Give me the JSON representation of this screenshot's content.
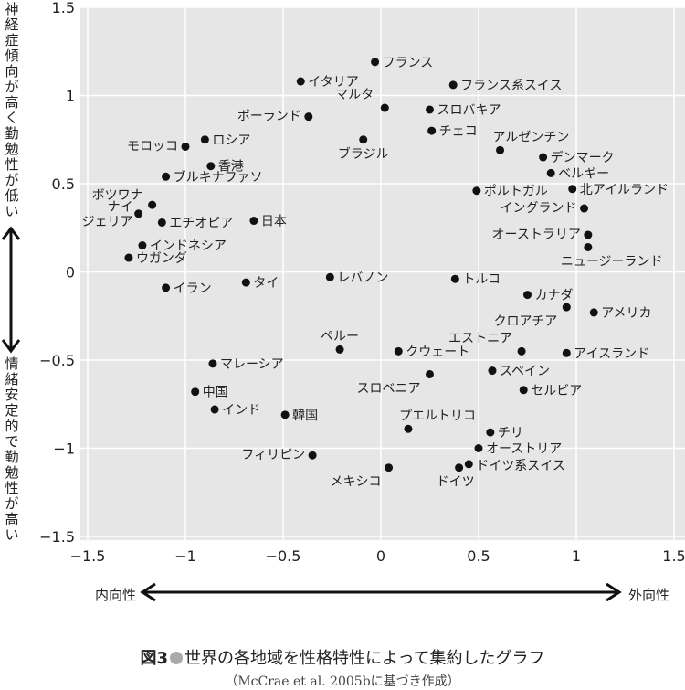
{
  "chart_data": {
    "type": "scatter",
    "title": "世界の各地域を性格特性によって集約したグラフ",
    "figure_label": "図3",
    "source": "（McCrae et al. 2005bに基づき作成）",
    "xlabel_left": "内向性",
    "xlabel_right": "外向性",
    "ylabel_top": "神経症傾向が高く勤勉性が低い",
    "ylabel_bottom": "情緒安定的で勤勉性が高い",
    "xlim": [
      -1.5,
      1.5
    ],
    "ylim": [
      -1.5,
      1.5
    ],
    "xticks": [
      "−1.5",
      "−1",
      "−0.5",
      "0",
      "0.5",
      "1",
      "1.5"
    ],
    "yticks": [
      "1.5",
      "1",
      "0.5",
      "0",
      "−0.5",
      "−1",
      "−1.5"
    ],
    "grid": true,
    "points": [
      {
        "label": "フランス",
        "x": -0.03,
        "y": 1.19
      },
      {
        "label": "イタリア",
        "x": -0.41,
        "y": 1.08
      },
      {
        "label": "フランス系スイス",
        "x": 0.37,
        "y": 1.06
      },
      {
        "label": "マルタ",
        "x": 0.02,
        "y": 0.93
      },
      {
        "label": "スロバキア",
        "x": 0.25,
        "y": 0.92
      },
      {
        "label": "ポーランド",
        "x": -0.37,
        "y": 0.88
      },
      {
        "label": "チェコ",
        "x": 0.26,
        "y": 0.8
      },
      {
        "label": "ブラジル",
        "x": -0.09,
        "y": 0.75
      },
      {
        "label": "ロシア",
        "x": -0.9,
        "y": 0.75
      },
      {
        "label": "モロッコ",
        "x": -1.0,
        "y": 0.71
      },
      {
        "label": "アルゼンチン",
        "x": 0.61,
        "y": 0.69
      },
      {
        "label": "デンマーク",
        "x": 0.83,
        "y": 0.65
      },
      {
        "label": "香港",
        "x": -0.87,
        "y": 0.6
      },
      {
        "label": "ベルギー",
        "x": 0.87,
        "y": 0.56
      },
      {
        "label": "ブルキナファソ",
        "x": -1.1,
        "y": 0.54
      },
      {
        "label": "ポルトガル",
        "x": 0.49,
        "y": 0.46
      },
      {
        "label": "北アイルランド",
        "x": 0.98,
        "y": 0.47
      },
      {
        "label": "ボツワナ",
        "x": -1.17,
        "y": 0.38
      },
      {
        "label": "イングランド",
        "x": 1.04,
        "y": 0.36
      },
      {
        "label": "ナイジェリア",
        "x": -1.24,
        "y": 0.33
      },
      {
        "label": "エチオピア",
        "x": -1.12,
        "y": 0.28
      },
      {
        "label": "日本",
        "x": -0.65,
        "y": 0.29
      },
      {
        "label": "オーストラリア",
        "x": 1.06,
        "y": 0.21
      },
      {
        "label": "インドネシア",
        "x": -1.22,
        "y": 0.15
      },
      {
        "label": "ニュージーランド",
        "x": 1.06,
        "y": 0.14
      },
      {
        "label": "ウガンダ",
        "x": -1.29,
        "y": 0.08
      },
      {
        "label": "レバノン",
        "x": -0.26,
        "y": -0.03
      },
      {
        "label": "トルコ",
        "x": 0.38,
        "y": -0.04
      },
      {
        "label": "タイ",
        "x": -0.69,
        "y": -0.06
      },
      {
        "label": "イラン",
        "x": -1.1,
        "y": -0.09
      },
      {
        "label": "カナダ",
        "x": 0.75,
        "y": -0.13
      },
      {
        "label": "クロアチア",
        "x": 0.95,
        "y": -0.2
      },
      {
        "label": "アメリカ",
        "x": 1.09,
        "y": -0.23
      },
      {
        "label": "ペルー",
        "x": -0.21,
        "y": -0.44
      },
      {
        "label": "クウェート",
        "x": 0.09,
        "y": -0.45
      },
      {
        "label": "エストニア",
        "x": 0.72,
        "y": -0.45
      },
      {
        "label": "アイスランド",
        "x": 0.95,
        "y": -0.46
      },
      {
        "label": "マレーシア",
        "x": -0.86,
        "y": -0.52
      },
      {
        "label": "スロベニア",
        "x": 0.25,
        "y": -0.58
      },
      {
        "label": "スペイン",
        "x": 0.57,
        "y": -0.56
      },
      {
        "label": "中国",
        "x": -0.95,
        "y": -0.68
      },
      {
        "label": "セルビア",
        "x": 0.73,
        "y": -0.67
      },
      {
        "label": "インド",
        "x": -0.85,
        "y": -0.78
      },
      {
        "label": "韓国",
        "x": -0.49,
        "y": -0.81
      },
      {
        "label": "プエルトリコ",
        "x": 0.14,
        "y": -0.89
      },
      {
        "label": "チリ",
        "x": 0.56,
        "y": -0.91
      },
      {
        "label": "オーストリア",
        "x": 0.5,
        "y": -1.0
      },
      {
        "label": "フィリピン",
        "x": -0.35,
        "y": -1.04
      },
      {
        "label": "ドイツ系スイス",
        "x": 0.45,
        "y": -1.09
      },
      {
        "label": "ドイツ",
        "x": 0.4,
        "y": -1.11
      },
      {
        "label": "メキシコ",
        "x": 0.04,
        "y": -1.11
      }
    ]
  }
}
